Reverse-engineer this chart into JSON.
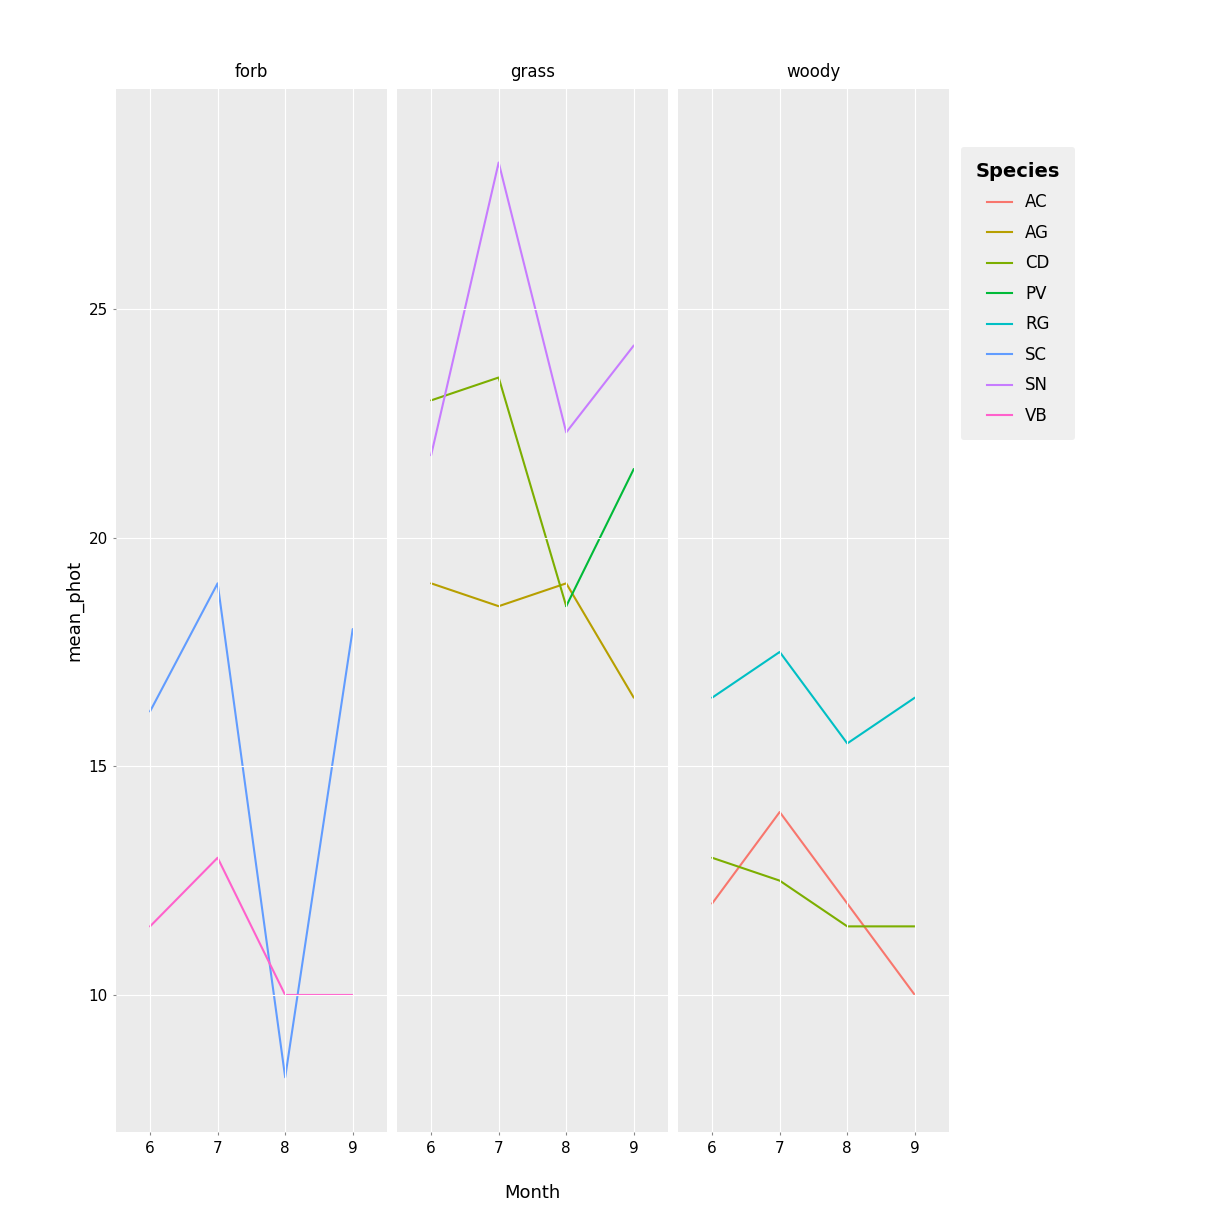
{
  "facets": [
    "forb",
    "grass",
    "woody"
  ],
  "x_ticks": [
    6,
    7,
    8,
    9
  ],
  "ylabel": "mean_phot",
  "xlabel": "Month",
  "ylim": [
    7.0,
    29.8
  ],
  "yticks": [
    10,
    15,
    20,
    25
  ],
  "species_colors": {
    "AC": "#F8766D",
    "AG": "#B79F00",
    "CD": "#7CAE00",
    "PV": "#00BA38",
    "RG": "#00BFC4",
    "SC": "#619CFF",
    "SN": "#C77CFF",
    "VB": "#FF61CC"
  },
  "forb": {
    "SC": {
      "x": [
        6,
        7,
        8,
        9
      ],
      "y": [
        16.2,
        19.0,
        8.2,
        18.0
      ]
    },
    "VB": {
      "x": [
        6,
        7,
        8,
        9
      ],
      "y": [
        11.5,
        13.0,
        10.0,
        10.0
      ]
    }
  },
  "grass": {
    "AG": {
      "x": [
        6,
        7,
        8,
        9
      ],
      "y": [
        19.0,
        18.5,
        19.0,
        16.5
      ]
    },
    "CD": {
      "x": [
        6,
        7,
        8
      ],
      "y": [
        23.0,
        23.5,
        18.5
      ]
    },
    "PV": {
      "x": [
        8,
        9
      ],
      "y": [
        18.5,
        21.5
      ]
    },
    "SN": {
      "x": [
        6,
        7,
        8,
        9
      ],
      "y": [
        21.8,
        28.2,
        22.3,
        24.2
      ]
    }
  },
  "woody": {
    "AC": {
      "x": [
        6,
        7,
        8,
        9
      ],
      "y": [
        12.0,
        14.0,
        12.0,
        10.0
      ]
    },
    "CD": {
      "x": [
        6,
        7,
        8,
        9
      ],
      "y": [
        13.0,
        12.5,
        11.5,
        11.5
      ]
    },
    "RG": {
      "x": [
        6,
        7,
        8,
        9
      ],
      "y": [
        16.5,
        17.5,
        15.5,
        16.5
      ]
    }
  },
  "legend_title": "Species",
  "legend_order": [
    "AC",
    "AG",
    "CD",
    "PV",
    "RG",
    "SC",
    "SN",
    "VB"
  ],
  "panel_bg": "#EBEBEB",
  "strip_bg": "#D9D9D9",
  "grid_color": "#FFFFFF",
  "outer_bg": "#FFFFFF",
  "line_width": 1.5,
  "title_fontsize": 12,
  "axis_label_fontsize": 13,
  "tick_fontsize": 11,
  "legend_title_fontsize": 13,
  "legend_item_fontsize": 12
}
